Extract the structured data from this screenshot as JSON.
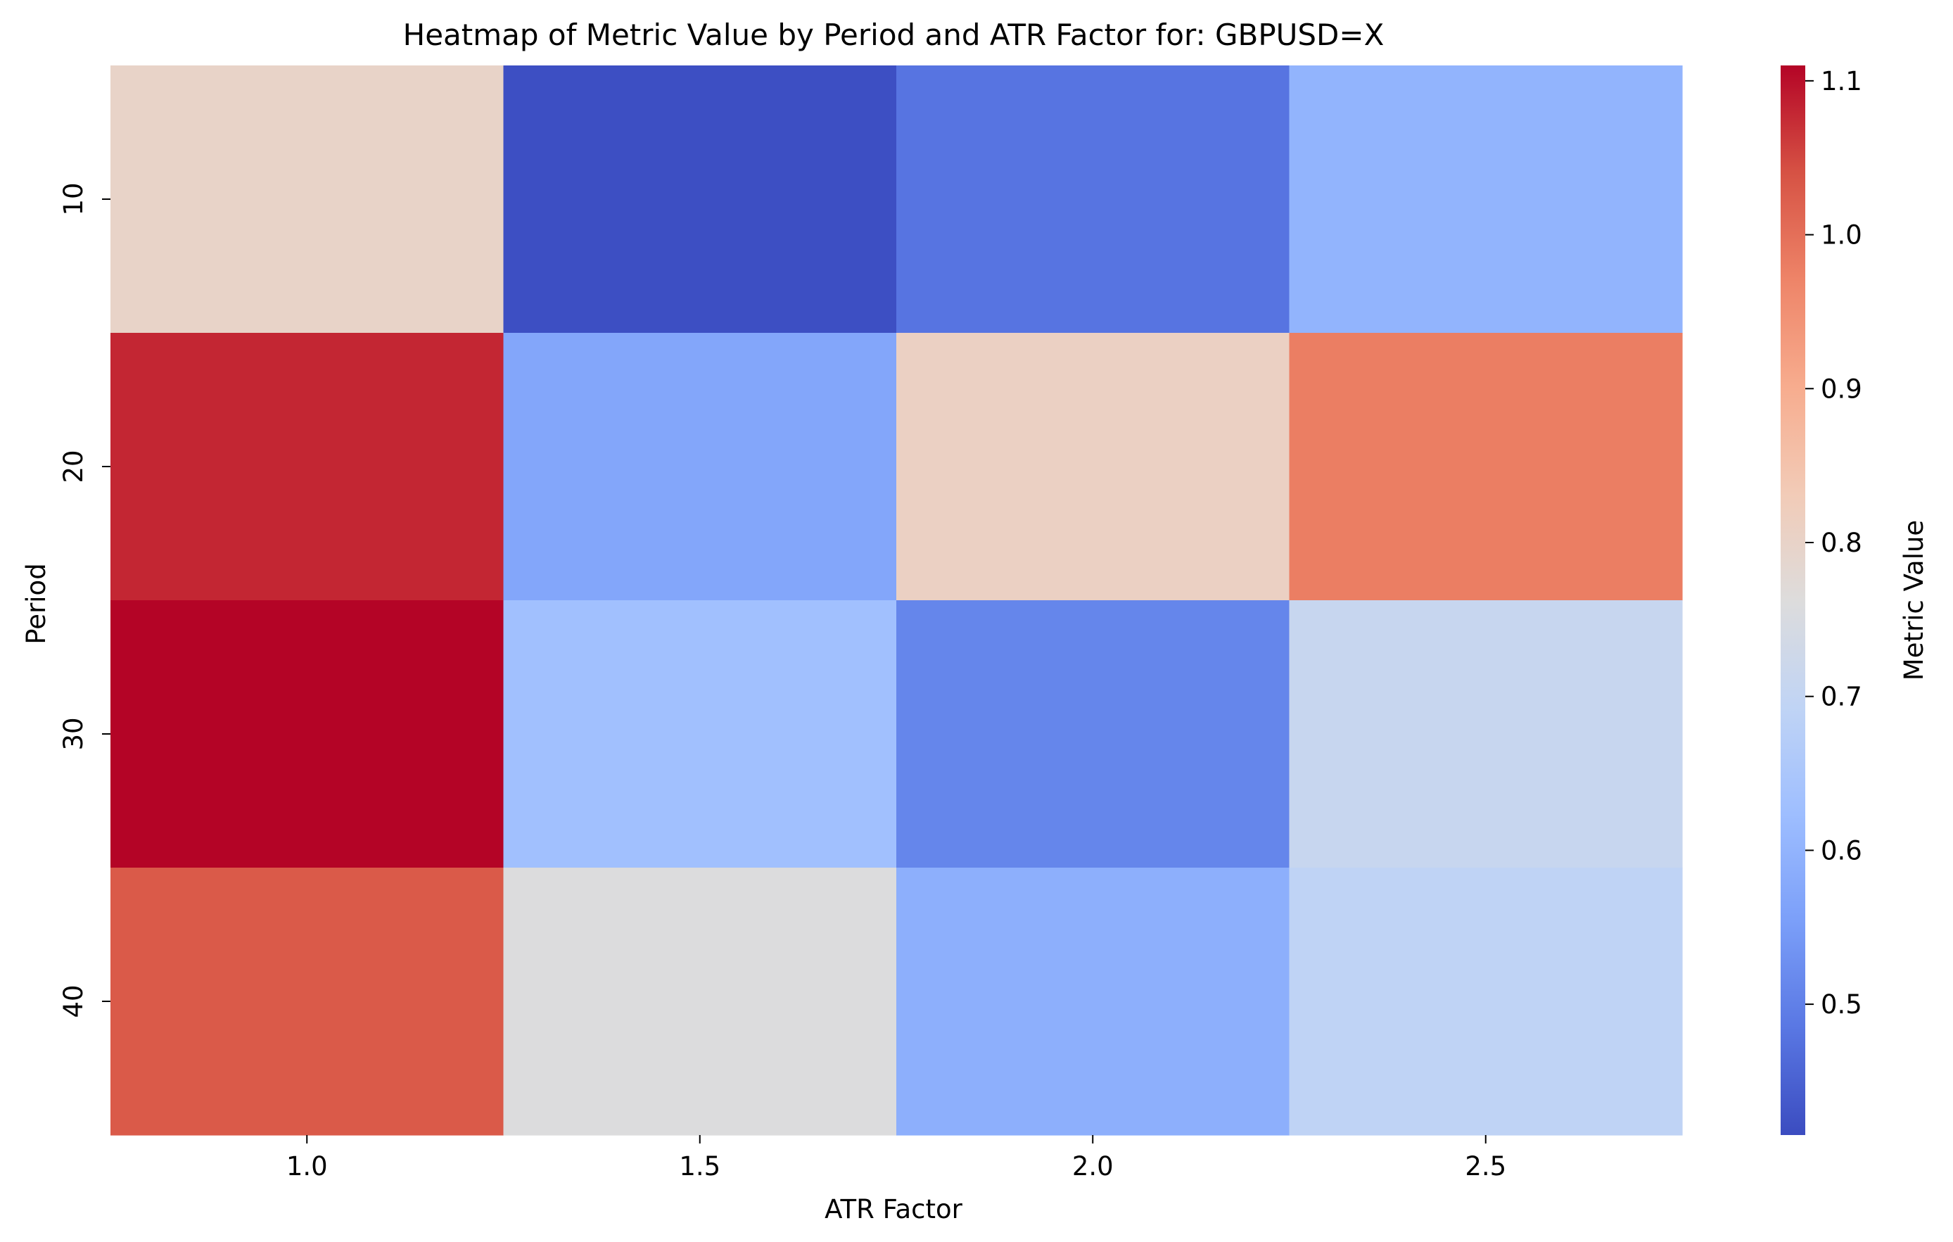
{
  "chart_data": {
    "type": "heatmap",
    "title": "Heatmap of Metric Value by Period and ATR Factor for: GBPUSD=X",
    "xlabel": "ATR Factor",
    "ylabel": "Period",
    "x_categories": [
      "1.0",
      "1.5",
      "2.0",
      "2.5"
    ],
    "y_categories": [
      "10",
      "20",
      "30",
      "40"
    ],
    "values": [
      [
        0.8,
        0.42,
        0.48,
        0.6
      ],
      [
        1.08,
        0.57,
        0.81,
        0.98
      ],
      [
        1.11,
        0.63,
        0.51,
        0.71
      ],
      [
        1.03,
        0.76,
        0.59,
        0.69
      ]
    ],
    "colormap": "coolwarm",
    "vmin": 0.415,
    "vmax": 1.11,
    "colorbar": {
      "label": "Metric Value",
      "ticks": [
        0.5,
        0.6,
        0.7,
        0.8,
        0.9,
        1.0,
        1.1
      ],
      "tick_labels": [
        "0.5",
        "0.6",
        "0.7",
        "0.8",
        "0.9",
        "1.0",
        "1.1"
      ]
    },
    "grid": false,
    "colormap_stops": [
      "#3b4cc0",
      "#5977e3",
      "#7b9ff9",
      "#9ebeff",
      "#c0d4f5",
      "#dddcdc",
      "#f2cbb7",
      "#f7ac8e",
      "#ee8468",
      "#d65244",
      "#b40426"
    ]
  }
}
